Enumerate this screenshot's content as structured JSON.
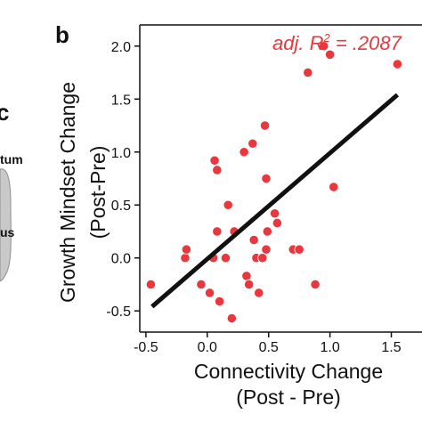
{
  "panel_labels": {
    "left": "c",
    "right": "b"
  },
  "left_panel": {
    "labels": [
      "tum",
      "us"
    ],
    "brain_fill": "#c9c9c9"
  },
  "colors": {
    "points": "#e8383d",
    "fit_line": "#111111",
    "annotation": "#e8383d"
  },
  "annotation": {
    "prefix": "adj. R",
    "superscript": "2",
    "suffix": " = .2087"
  },
  "chart_data": {
    "type": "scatter",
    "xlabel_line1": "Connectivity Change",
    "xlabel_line2": "(Post - Pre)",
    "ylabel_line1": "Growth Mindset Change",
    "ylabel_line2": "(Post-Pre)",
    "xlim": [
      -0.55,
      1.75
    ],
    "ylim": [
      -0.7,
      2.2
    ],
    "xticks": [
      -0.5,
      0.0,
      0.5,
      1.0,
      1.5
    ],
    "xtick_labels": [
      "-0.5",
      "0.0",
      "0.5",
      "1.0",
      "1.5"
    ],
    "yticks": [
      -0.5,
      0.0,
      0.5,
      1.0,
      1.5,
      2.0
    ],
    "ytick_labels": [
      "-0.5",
      "0.0",
      "0.5",
      "1.0",
      "1.5",
      "2.0"
    ],
    "grid": false,
    "fit_line": {
      "x": [
        -0.45,
        1.55
      ],
      "y": [
        -0.46,
        1.54
      ]
    },
    "points": [
      {
        "x": -0.46,
        "y": -0.25
      },
      {
        "x": -0.18,
        "y": 0.0
      },
      {
        "x": -0.17,
        "y": 0.08
      },
      {
        "x": -0.05,
        "y": -0.25
      },
      {
        "x": 0.02,
        "y": -0.33
      },
      {
        "x": 0.05,
        "y": 0.0
      },
      {
        "x": 0.06,
        "y": 0.92
      },
      {
        "x": 0.08,
        "y": 0.83
      },
      {
        "x": 0.08,
        "y": 0.25
      },
      {
        "x": 0.1,
        "y": -0.41
      },
      {
        "x": 0.15,
        "y": 0.0
      },
      {
        "x": 0.17,
        "y": 0.5
      },
      {
        "x": 0.2,
        "y": -0.57
      },
      {
        "x": 0.22,
        "y": 0.25
      },
      {
        "x": 0.3,
        "y": 1.0
      },
      {
        "x": 0.32,
        "y": -0.17
      },
      {
        "x": 0.34,
        "y": -0.25
      },
      {
        "x": 0.37,
        "y": 1.08
      },
      {
        "x": 0.38,
        "y": 0.17
      },
      {
        "x": 0.4,
        "y": 0.0
      },
      {
        "x": 0.42,
        "y": -0.33
      },
      {
        "x": 0.45,
        "y": 0.0
      },
      {
        "x": 0.47,
        "y": 1.25
      },
      {
        "x": 0.48,
        "y": 0.75
      },
      {
        "x": 0.48,
        "y": 0.08
      },
      {
        "x": 0.49,
        "y": 0.25
      },
      {
        "x": 0.55,
        "y": 0.42
      },
      {
        "x": 0.57,
        "y": 0.33
      },
      {
        "x": 0.7,
        "y": 0.08
      },
      {
        "x": 0.75,
        "y": 0.08
      },
      {
        "x": 0.82,
        "y": 1.75
      },
      {
        "x": 0.88,
        "y": -0.25
      },
      {
        "x": 0.95,
        "y": 2.0
      },
      {
        "x": 1.0,
        "y": 1.92
      },
      {
        "x": 1.03,
        "y": 0.67
      },
      {
        "x": 1.55,
        "y": 1.83
      }
    ]
  }
}
